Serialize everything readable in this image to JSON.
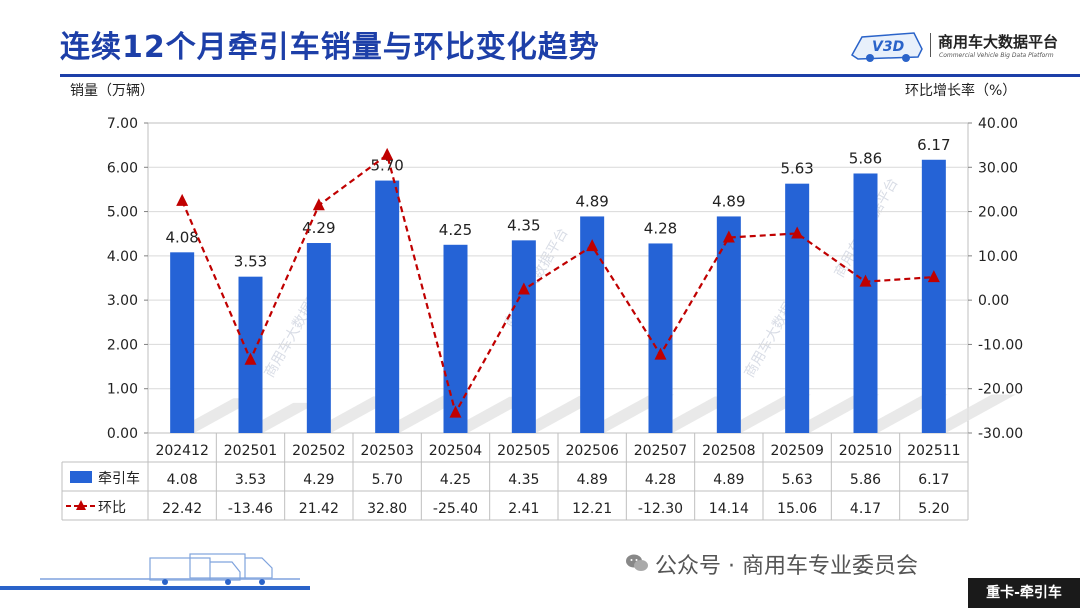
{
  "header": {
    "title": "连续12个月牵引车销量与环比变化趋势",
    "logo_name": "商用车大数据平台",
    "logo_sub": "Commercial Vehicle Big Data Platform",
    "logo_mark": "V3D"
  },
  "chart_data": {
    "type": "bar",
    "categories": [
      "202412",
      "202501",
      "202502",
      "202503",
      "202504",
      "202505",
      "202506",
      "202507",
      "202508",
      "202509",
      "202510",
      "202511"
    ],
    "series": [
      {
        "name": "牵引车",
        "type": "bar",
        "axis": "left",
        "color": "#2563d6",
        "values": [
          4.08,
          3.53,
          4.29,
          5.7,
          4.25,
          4.35,
          4.89,
          4.28,
          4.89,
          5.63,
          5.86,
          6.17
        ],
        "labels": [
          "4.08",
          "3.53",
          "4.29",
          "5.70",
          "4.25",
          "4.35",
          "4.89",
          "4.28",
          "4.89",
          "5.63",
          "5.86",
          "6.17"
        ]
      },
      {
        "name": "环比",
        "type": "line",
        "axis": "right",
        "color": "#c00000",
        "values": [
          22.42,
          -13.46,
          21.42,
          32.8,
          -25.4,
          2.41,
          12.21,
          -12.3,
          14.14,
          15.06,
          4.17,
          5.2
        ],
        "labels": [
          "22.42",
          "-13.46",
          "21.42",
          "32.80",
          "-25.40",
          "2.41",
          "12.21",
          "-12.30",
          "14.14",
          "15.06",
          "4.17",
          "5.20"
        ]
      }
    ],
    "ylabel": "销量（万辆）",
    "y2label": "环比增长率（%）",
    "ylim": [
      0,
      7
    ],
    "y2lim": [
      -30,
      40
    ],
    "yticks": [
      "0.00",
      "1.00",
      "2.00",
      "3.00",
      "4.00",
      "5.00",
      "6.00",
      "7.00"
    ],
    "y2ticks": [
      "-30.00",
      "-20.00",
      "-10.00",
      "0.00",
      "10.00",
      "20.00",
      "30.00",
      "40.00"
    ],
    "data_table": true,
    "grid": true,
    "watermark": "商用车大数据平台"
  },
  "footer": {
    "wechat_text": "公众号 · 商用车专业委员会",
    "corner_tag": "重卡-牵引车"
  }
}
